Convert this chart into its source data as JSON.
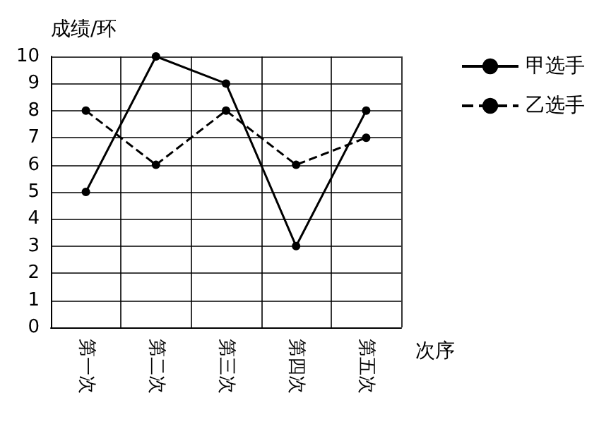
{
  "chart_data": {
    "type": "line",
    "ylabel": "成绩/环",
    "xlabel": "次序",
    "categories": [
      "第一次",
      "第二次",
      "第三次",
      "第四次",
      "第五次"
    ],
    "series": [
      {
        "name": "甲选手",
        "color": "#000000",
        "values": [
          5,
          10,
          9,
          3,
          8
        ],
        "line_style": "solid"
      },
      {
        "name": "乙选手",
        "color": "#000000",
        "values": [
          8,
          6,
          8,
          6,
          7
        ],
        "line_style": "dashed"
      }
    ],
    "ylim": [
      0,
      10
    ],
    "yticks": [
      0,
      1,
      2,
      3,
      4,
      5,
      6,
      7,
      8,
      9,
      10
    ],
    "grid": true,
    "legend": "top right",
    "marker": "circle"
  }
}
